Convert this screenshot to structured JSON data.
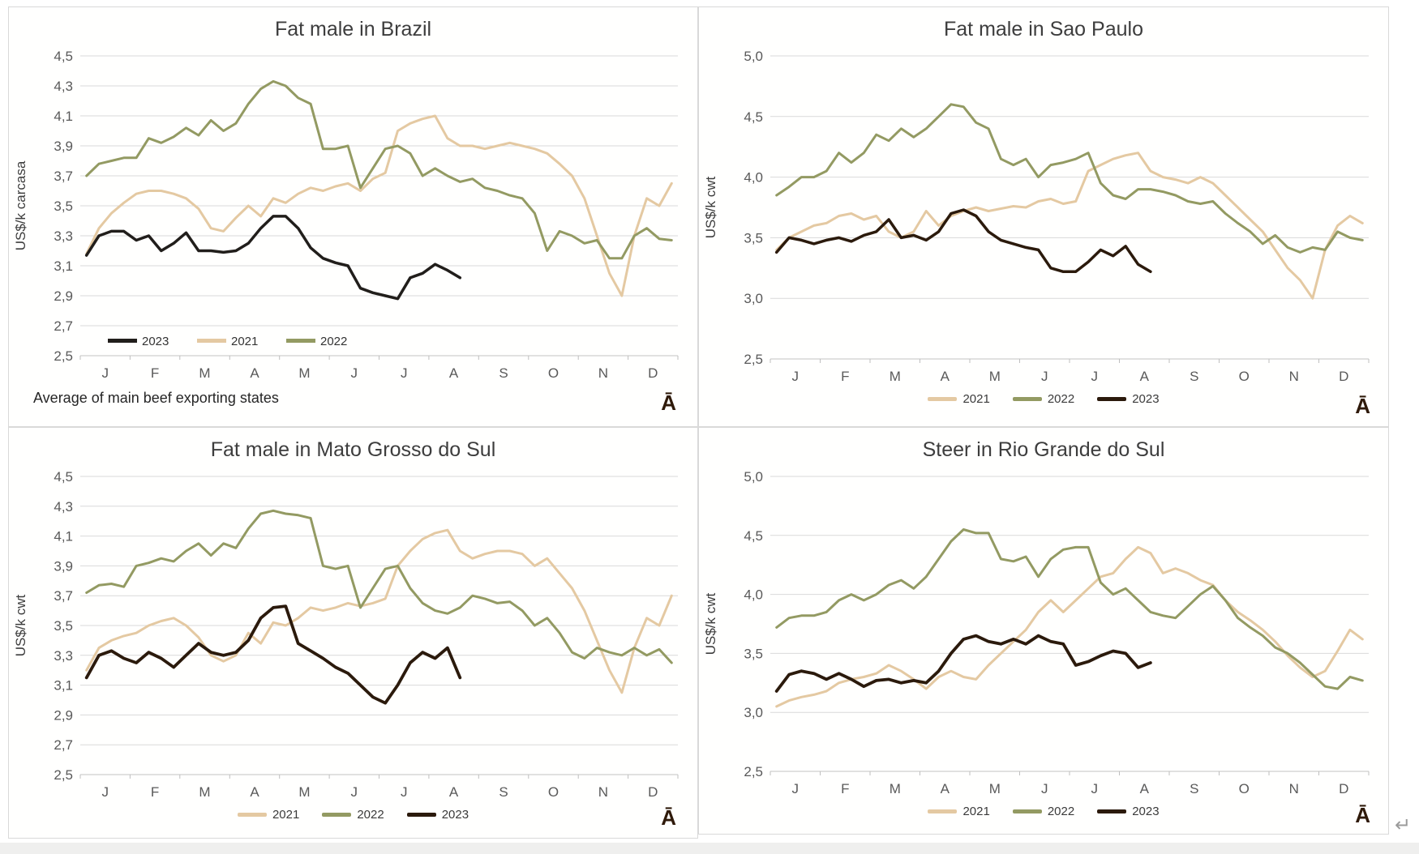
{
  "figure": {
    "corner_mark": "Ā",
    "return_mark": "↵",
    "footnote": "Average of main beef exporting states"
  },
  "colors": {
    "grid": "#d9d9d9",
    "axis": "#c3c3c3",
    "tick_text": "#595959",
    "title_text": "#3d3d3d",
    "corner_mark": "#2f1a0a",
    "series_2021": "#e4c9a2",
    "series_2022": "#939a62",
    "series_2023": "#2b1a0c"
  },
  "chart_data": [
    {
      "type": "line",
      "title": "Fat male in Brazil",
      "ylabel": "US$/k carcasa",
      "footnote": "Average of main beef exporting states",
      "ylim": [
        2.5,
        4.5
      ],
      "ytick_values": [
        2.5,
        2.7,
        2.9,
        3.1,
        3.3,
        3.5,
        3.7,
        3.9,
        4.1,
        4.3,
        4.5
      ],
      "ytick_labels": [
        "2,5",
        "2,7",
        "2,9",
        "3,1",
        "3,3",
        "3,5",
        "3,7",
        "3,9",
        "4,1",
        "4,3",
        "4,5"
      ],
      "xtick_labels": [
        "J",
        "F",
        "M",
        "A",
        "M",
        "J",
        "J",
        "A",
        "S",
        "O",
        "N",
        "D"
      ],
      "legend": [
        "2023",
        "2021",
        "2022"
      ],
      "legend_inside": true,
      "grid": true,
      "series": [
        {
          "name": "2021",
          "color": "#e4c9a2",
          "width": 3,
          "values": [
            3.18,
            3.35,
            3.45,
            3.52,
            3.58,
            3.6,
            3.6,
            3.58,
            3.55,
            3.48,
            3.35,
            3.33,
            3.42,
            3.5,
            3.43,
            3.55,
            3.52,
            3.58,
            3.62,
            3.6,
            3.63,
            3.65,
            3.6,
            3.68,
            3.72,
            4.0,
            4.05,
            4.08,
            4.1,
            3.95,
            3.9,
            3.9,
            3.88,
            3.9,
            3.92,
            3.9,
            3.88,
            3.85,
            3.78,
            3.7,
            3.55,
            3.3,
            3.05,
            2.9,
            3.3,
            3.55,
            3.5,
            3.65
          ]
        },
        {
          "name": "2022",
          "color": "#939a62",
          "width": 3,
          "values": [
            3.7,
            3.78,
            3.8,
            3.82,
            3.82,
            3.95,
            3.92,
            3.96,
            4.02,
            3.97,
            4.07,
            4.0,
            4.05,
            4.18,
            4.28,
            4.33,
            4.3,
            4.22,
            4.18,
            3.88,
            3.88,
            3.9,
            3.62,
            3.75,
            3.88,
            3.9,
            3.85,
            3.7,
            3.75,
            3.7,
            3.66,
            3.68,
            3.62,
            3.6,
            3.57,
            3.55,
            3.45,
            3.2,
            3.33,
            3.3,
            3.25,
            3.27,
            3.15,
            3.15,
            3.3,
            3.35,
            3.28,
            3.27
          ]
        },
        {
          "name": "2023",
          "color": "#211e1b",
          "width": 3.5,
          "values": [
            3.17,
            3.3,
            3.33,
            3.33,
            3.27,
            3.3,
            3.2,
            3.25,
            3.32,
            3.2,
            3.2,
            3.19,
            3.2,
            3.25,
            3.35,
            3.43,
            3.43,
            3.35,
            3.22,
            3.15,
            3.12,
            3.1,
            2.95,
            2.92,
            2.9,
            2.88,
            3.02,
            3.05,
            3.11,
            3.07,
            3.02
          ]
        }
      ]
    },
    {
      "type": "line",
      "title": "Fat male in Sao Paulo",
      "ylabel": "US$/k cwt",
      "ylim": [
        2.5,
        5.0
      ],
      "ytick_values": [
        2.5,
        3.0,
        3.5,
        4.0,
        4.5,
        5.0
      ],
      "ytick_labels": [
        "2,5",
        "3,0",
        "3,5",
        "4,0",
        "4,5",
        "5,0"
      ],
      "xtick_labels": [
        "J",
        "F",
        "M",
        "A",
        "M",
        "J",
        "J",
        "A",
        "S",
        "O",
        "N",
        "D"
      ],
      "legend": [
        "2021",
        "2022",
        "2023"
      ],
      "legend_inside": false,
      "grid": true,
      "series": [
        {
          "name": "2021",
          "color": "#e4c9a2",
          "width": 3,
          "values": [
            3.4,
            3.5,
            3.55,
            3.6,
            3.62,
            3.68,
            3.7,
            3.65,
            3.68,
            3.55,
            3.5,
            3.55,
            3.72,
            3.6,
            3.68,
            3.72,
            3.75,
            3.72,
            3.74,
            3.76,
            3.75,
            3.8,
            3.82,
            3.78,
            3.8,
            4.05,
            4.1,
            4.15,
            4.18,
            4.2,
            4.05,
            4.0,
            3.98,
            3.95,
            4.0,
            3.95,
            3.85,
            3.75,
            3.65,
            3.55,
            3.4,
            3.25,
            3.15,
            3.0,
            3.4,
            3.6,
            3.68,
            3.62
          ]
        },
        {
          "name": "2022",
          "color": "#939a62",
          "width": 3,
          "values": [
            3.85,
            3.92,
            4.0,
            4.0,
            4.05,
            4.2,
            4.12,
            4.2,
            4.35,
            4.3,
            4.4,
            4.33,
            4.4,
            4.5,
            4.6,
            4.58,
            4.45,
            4.4,
            4.15,
            4.1,
            4.15,
            4.0,
            4.1,
            4.12,
            4.15,
            4.2,
            3.95,
            3.85,
            3.82,
            3.9,
            3.9,
            3.88,
            3.85,
            3.8,
            3.78,
            3.8,
            3.7,
            3.62,
            3.55,
            3.45,
            3.52,
            3.42,
            3.38,
            3.42,
            3.4,
            3.55,
            3.5,
            3.48
          ]
        },
        {
          "name": "2023",
          "color": "#2b1a0c",
          "width": 3.5,
          "values": [
            3.38,
            3.5,
            3.48,
            3.45,
            3.48,
            3.5,
            3.47,
            3.52,
            3.55,
            3.65,
            3.5,
            3.52,
            3.48,
            3.55,
            3.7,
            3.73,
            3.68,
            3.55,
            3.48,
            3.45,
            3.42,
            3.4,
            3.25,
            3.22,
            3.22,
            3.3,
            3.4,
            3.35,
            3.43,
            3.28,
            3.22
          ]
        }
      ]
    },
    {
      "type": "line",
      "title": "Fat male in Mato Grosso do Sul",
      "ylabel": "US$/k cwt",
      "ylim": [
        2.5,
        4.5
      ],
      "ytick_values": [
        2.5,
        2.7,
        2.9,
        3.1,
        3.3,
        3.5,
        3.7,
        3.9,
        4.1,
        4.3,
        4.5
      ],
      "ytick_labels": [
        "2,5",
        "2,7",
        "2,9",
        "3,1",
        "3,3",
        "3,5",
        "3,7",
        "3,9",
        "4,1",
        "4,3",
        "4,5"
      ],
      "xtick_labels": [
        "J",
        "F",
        "M",
        "A",
        "M",
        "J",
        "J",
        "A",
        "S",
        "O",
        "N",
        "D"
      ],
      "legend": [
        "2021",
        "2022",
        "2023"
      ],
      "legend_inside": false,
      "grid": true,
      "series": [
        {
          "name": "2021",
          "color": "#e4c9a2",
          "width": 3,
          "values": [
            3.2,
            3.35,
            3.4,
            3.43,
            3.45,
            3.5,
            3.53,
            3.55,
            3.5,
            3.42,
            3.3,
            3.26,
            3.3,
            3.45,
            3.38,
            3.52,
            3.5,
            3.55,
            3.62,
            3.6,
            3.62,
            3.65,
            3.63,
            3.65,
            3.68,
            3.9,
            4.0,
            4.08,
            4.12,
            4.14,
            4.0,
            3.95,
            3.98,
            4.0,
            4.0,
            3.98,
            3.9,
            3.95,
            3.85,
            3.75,
            3.6,
            3.4,
            3.2,
            3.05,
            3.35,
            3.55,
            3.5,
            3.7
          ]
        },
        {
          "name": "2022",
          "color": "#939a62",
          "width": 3,
          "values": [
            3.72,
            3.77,
            3.78,
            3.76,
            3.9,
            3.92,
            3.95,
            3.93,
            4.0,
            4.05,
            3.97,
            4.05,
            4.02,
            4.15,
            4.25,
            4.27,
            4.25,
            4.24,
            4.22,
            3.9,
            3.88,
            3.9,
            3.62,
            3.75,
            3.88,
            3.9,
            3.75,
            3.65,
            3.6,
            3.58,
            3.62,
            3.7,
            3.68,
            3.65,
            3.66,
            3.6,
            3.5,
            3.55,
            3.45,
            3.32,
            3.28,
            3.35,
            3.32,
            3.3,
            3.35,
            3.3,
            3.34,
            3.25
          ]
        },
        {
          "name": "2023",
          "color": "#2b1a0c",
          "width": 3.8,
          "values": [
            3.15,
            3.3,
            3.33,
            3.28,
            3.25,
            3.32,
            3.28,
            3.22,
            3.3,
            3.38,
            3.32,
            3.3,
            3.32,
            3.4,
            3.55,
            3.62,
            3.63,
            3.38,
            3.33,
            3.28,
            3.22,
            3.18,
            3.1,
            3.02,
            2.98,
            3.1,
            3.25,
            3.32,
            3.28,
            3.35,
            3.15
          ]
        }
      ]
    },
    {
      "type": "line",
      "title": "Steer in Rio Grande do Sul",
      "ylabel": "US$/k cwt",
      "ylim": [
        2.5,
        5.0
      ],
      "ytick_values": [
        2.5,
        3.0,
        3.5,
        4.0,
        4.5,
        5.0
      ],
      "ytick_labels": [
        "2,5",
        "3,0",
        "3,5",
        "4,0",
        "4,5",
        "5,0"
      ],
      "xtick_labels": [
        "J",
        "F",
        "M",
        "A",
        "M",
        "J",
        "J",
        "A",
        "S",
        "O",
        "N",
        "D"
      ],
      "legend": [
        "2021",
        "2022",
        "2023"
      ],
      "legend_inside": false,
      "grid": true,
      "series": [
        {
          "name": "2021",
          "color": "#e4c9a2",
          "width": 3,
          "values": [
            3.05,
            3.1,
            3.13,
            3.15,
            3.18,
            3.25,
            3.28,
            3.3,
            3.33,
            3.4,
            3.35,
            3.28,
            3.2,
            3.3,
            3.35,
            3.3,
            3.28,
            3.4,
            3.5,
            3.6,
            3.7,
            3.85,
            3.95,
            3.85,
            3.95,
            4.05,
            4.15,
            4.18,
            4.3,
            4.4,
            4.35,
            4.18,
            4.22,
            4.18,
            4.12,
            4.08,
            3.95,
            3.85,
            3.78,
            3.7,
            3.6,
            3.48,
            3.38,
            3.3,
            3.35,
            3.52,
            3.7,
            3.62
          ]
        },
        {
          "name": "2022",
          "color": "#939a62",
          "width": 3,
          "values": [
            3.72,
            3.8,
            3.82,
            3.82,
            3.85,
            3.95,
            4.0,
            3.95,
            4.0,
            4.08,
            4.12,
            4.05,
            4.15,
            4.3,
            4.45,
            4.55,
            4.52,
            4.52,
            4.3,
            4.28,
            4.32,
            4.15,
            4.3,
            4.38,
            4.4,
            4.4,
            4.1,
            4.0,
            4.05,
            3.95,
            3.85,
            3.82,
            3.8,
            3.9,
            4.0,
            4.07,
            3.95,
            3.8,
            3.72,
            3.65,
            3.55,
            3.5,
            3.42,
            3.32,
            3.22,
            3.2,
            3.3,
            3.27
          ]
        },
        {
          "name": "2023",
          "color": "#2b1a0c",
          "width": 3.8,
          "values": [
            3.18,
            3.32,
            3.35,
            3.33,
            3.28,
            3.33,
            3.28,
            3.22,
            3.27,
            3.28,
            3.25,
            3.27,
            3.25,
            3.35,
            3.5,
            3.62,
            3.65,
            3.6,
            3.58,
            3.62,
            3.58,
            3.65,
            3.6,
            3.58,
            3.4,
            3.43,
            3.48,
            3.52,
            3.5,
            3.38,
            3.42
          ]
        }
      ]
    }
  ]
}
